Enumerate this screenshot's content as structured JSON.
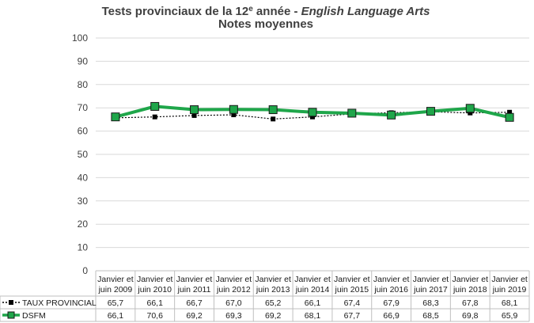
{
  "chart_data": {
    "type": "line",
    "title_line1_prefix": "Tests provinciaux de la 12",
    "title_superscript": "e",
    "title_line1_middle": " année - ",
    "title_line1_italic": "English Language Arts",
    "title_line2": "Notes moyennes",
    "ylim": [
      0,
      100
    ],
    "yticks": [
      "0",
      "10",
      "20",
      "30",
      "40",
      "50",
      "60",
      "70",
      "80",
      "90",
      "100"
    ],
    "grid": true,
    "legend": "data-table",
    "categories": [
      [
        "Janvier et",
        "juin 2009"
      ],
      [
        "Janvier et",
        "juin 2010"
      ],
      [
        "Janvier et",
        "juin 2011"
      ],
      [
        "Janvier et",
        "juin 2012"
      ],
      [
        "Janvier et",
        "juin 2013"
      ],
      [
        "Janvier et",
        "juin 2014"
      ],
      [
        "Janvier et",
        "juin 2015"
      ],
      [
        "Janvier et",
        "juin 2016"
      ],
      [
        "Janvier et",
        "juin 2017"
      ],
      [
        "Janvier et",
        "juin 2018"
      ],
      [
        "Janvier et",
        "juin 2019"
      ]
    ],
    "series": [
      {
        "name": "TAUX PROVINCIAL",
        "color": "#000000",
        "values": [
          65.7,
          66.1,
          66.7,
          67.0,
          65.2,
          66.1,
          67.4,
          67.9,
          68.3,
          67.8,
          68.1
        ],
        "labels": [
          "65,7",
          "66,1",
          "66,7",
          "67,0",
          "65,2",
          "66,1",
          "67,4",
          "67,9",
          "68,3",
          "67,8",
          "68,1"
        ]
      },
      {
        "name": "DSFM",
        "color": "#1fa64a",
        "values": [
          66.1,
          70.6,
          69.2,
          69.3,
          69.2,
          68.1,
          67.7,
          66.9,
          68.5,
          69.8,
          65.9
        ],
        "labels": [
          "66,1",
          "70,6",
          "69,2",
          "69,3",
          "69,2",
          "68,1",
          "67,7",
          "66,9",
          "68,5",
          "69,8",
          "65,9"
        ]
      }
    ]
  }
}
